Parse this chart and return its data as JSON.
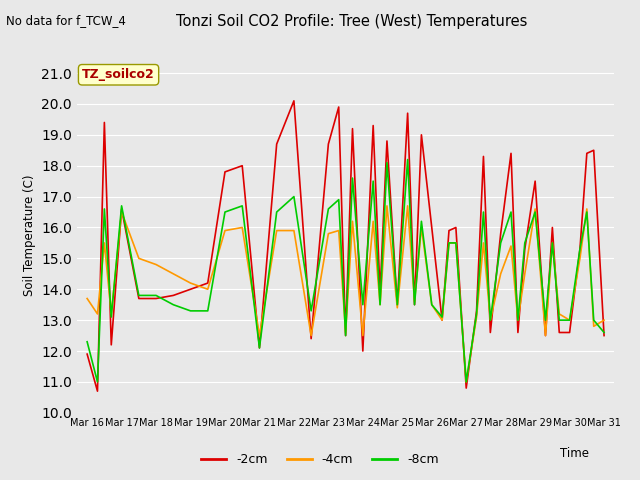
{
  "title": "Tonzi Soil CO2 Profile: Tree (West) Temperatures",
  "no_data_text": "No data for f_TCW_4",
  "ylabel": "Soil Temperature (C)",
  "xlabel": "Time",
  "legend_label": "TZ_soilco2",
  "ylim": [
    10.0,
    21.5
  ],
  "yticks": [
    10.0,
    11.0,
    12.0,
    13.0,
    14.0,
    15.0,
    16.0,
    17.0,
    18.0,
    19.0,
    20.0,
    21.0
  ],
  "xtick_labels": [
    "Mar 16",
    "Mar 17",
    "Mar 18",
    "Mar 19",
    "Mar 20",
    "Mar 21",
    "Mar 22",
    "Mar 23",
    "Mar 24",
    "Mar 25",
    "Mar 26",
    "Mar 27",
    "Mar 28",
    "Mar 29",
    "Mar 30",
    "Mar 31"
  ],
  "line_2cm": {
    "label": "-2cm",
    "color": "#dd0000",
    "x": [
      0,
      0.3,
      0.5,
      0.7,
      1.0,
      1.5,
      2.0,
      2.5,
      3.0,
      3.5,
      4.0,
      4.5,
      5.0,
      5.5,
      6.0,
      6.5,
      7.0,
      7.3,
      7.5,
      7.7,
      8.0,
      8.3,
      8.5,
      8.7,
      9.0,
      9.3,
      9.5,
      9.7,
      10.0,
      10.3,
      10.5,
      10.7,
      11.0,
      11.3,
      11.5,
      11.7,
      12.0,
      12.3,
      12.5,
      12.7,
      13.0,
      13.3,
      13.5,
      13.7,
      14.0,
      14.3,
      14.5,
      14.7,
      15.0
    ],
    "y": [
      11.9,
      10.7,
      19.4,
      12.2,
      16.6,
      13.7,
      13.7,
      13.8,
      14.0,
      14.2,
      17.8,
      18.0,
      12.1,
      18.7,
      20.1,
      12.4,
      18.7,
      19.9,
      12.5,
      19.2,
      12.0,
      19.3,
      13.9,
      18.8,
      13.5,
      19.7,
      13.5,
      19.0,
      16.0,
      13.0,
      15.9,
      16.0,
      10.8,
      13.3,
      18.3,
      12.6,
      15.8,
      18.4,
      12.6,
      15.3,
      17.5,
      12.5,
      16.0,
      12.6,
      12.6,
      15.3,
      18.4,
      18.5,
      12.5
    ]
  },
  "line_4cm": {
    "label": "-4cm",
    "color": "#ff9900",
    "x": [
      0,
      0.3,
      0.5,
      0.7,
      1.0,
      1.5,
      2.0,
      2.5,
      3.0,
      3.5,
      4.0,
      4.5,
      5.0,
      5.5,
      6.0,
      6.5,
      7.0,
      7.3,
      7.5,
      7.7,
      8.0,
      8.3,
      8.5,
      8.7,
      9.0,
      9.3,
      9.5,
      9.7,
      10.0,
      10.3,
      10.5,
      10.7,
      11.0,
      11.3,
      11.5,
      11.7,
      12.0,
      12.3,
      12.5,
      12.7,
      13.0,
      13.3,
      13.5,
      13.7,
      14.0,
      14.3,
      14.5,
      14.7,
      15.0
    ],
    "y": [
      13.7,
      13.2,
      15.5,
      13.2,
      16.5,
      15.0,
      14.8,
      14.5,
      14.2,
      14.0,
      15.9,
      16.0,
      12.5,
      15.9,
      15.9,
      12.5,
      15.8,
      15.9,
      12.6,
      16.2,
      12.5,
      16.2,
      13.5,
      16.7,
      13.4,
      16.7,
      13.6,
      16.0,
      13.5,
      13.0,
      15.5,
      15.5,
      11.0,
      13.1,
      15.5,
      13.0,
      14.5,
      15.4,
      13.0,
      14.5,
      16.6,
      12.5,
      15.5,
      13.2,
      13.0,
      15.0,
      16.6,
      12.8,
      13.0
    ]
  },
  "line_8cm": {
    "label": "-8cm",
    "color": "#00cc00",
    "x": [
      0,
      0.3,
      0.5,
      0.7,
      1.0,
      1.5,
      2.0,
      2.5,
      3.0,
      3.5,
      4.0,
      4.5,
      5.0,
      5.5,
      6.0,
      6.5,
      7.0,
      7.3,
      7.5,
      7.7,
      8.0,
      8.3,
      8.5,
      8.7,
      9.0,
      9.3,
      9.5,
      9.7,
      10.0,
      10.3,
      10.5,
      10.7,
      11.0,
      11.3,
      11.5,
      11.7,
      12.0,
      12.3,
      12.5,
      12.7,
      13.0,
      13.3,
      13.5,
      13.7,
      14.0,
      14.3,
      14.5,
      14.7,
      15.0
    ],
    "y": [
      12.3,
      11.0,
      16.6,
      13.1,
      16.7,
      13.8,
      13.8,
      13.5,
      13.3,
      13.3,
      16.5,
      16.7,
      12.1,
      16.5,
      17.0,
      13.3,
      16.6,
      16.9,
      12.5,
      17.6,
      13.5,
      17.5,
      13.5,
      18.1,
      13.5,
      18.2,
      13.5,
      16.2,
      13.5,
      13.1,
      15.5,
      15.5,
      11.0,
      13.2,
      16.5,
      13.0,
      15.5,
      16.5,
      13.0,
      15.5,
      16.5,
      13.0,
      15.5,
      13.0,
      13.0,
      15.3,
      16.5,
      13.0,
      12.6
    ]
  },
  "bg_color": "#e8e8e8",
  "legend_box_color": "#ffffcc",
  "legend_box_edge": "#999900"
}
